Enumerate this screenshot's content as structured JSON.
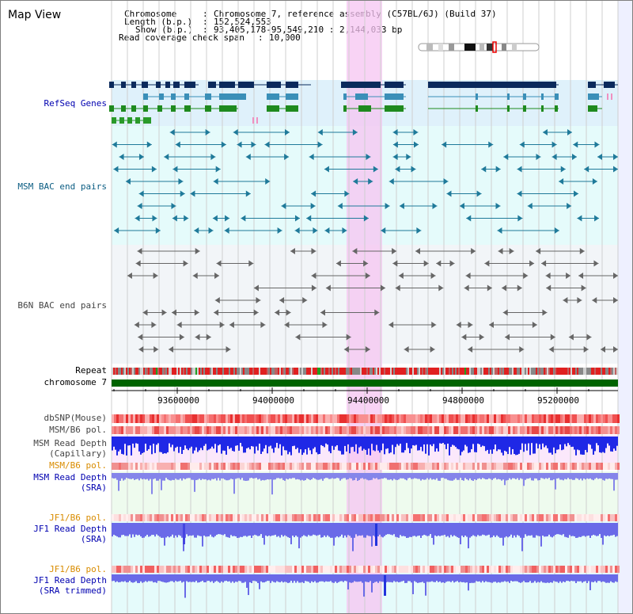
{
  "title": "Map View",
  "info": {
    "chromosome_label": "Chromosome",
    "chromosome_value": "Chromosome 7, reference assembly (C57BL/6J) (Build 37)",
    "length_label": "Length (b.p.)",
    "length_value": "152,524,553",
    "show_label": "Show (b.p.)",
    "show_value": "93,405,178-95,549,210 : 2,144,033 bp",
    "coverage_label": "Read coverage check span",
    "coverage_value": "10,000"
  },
  "tracks": {
    "refseq": "RefSeq Genes",
    "msm_bac": "MSM BAC end pairs",
    "b6n_bac": "B6N BAC end pairs",
    "repeat": "Repeat",
    "chromosome": "chromosome 7",
    "dbsnp": "dbSNP(Mouse)",
    "msm_b6_pol_1": "MSM/B6 pol.",
    "msm_depth_cap_1": "MSM Read Depth",
    "msm_depth_cap_2": "(Capillary)",
    "msm_b6_pol_2": "MSM/B6 pol.",
    "msm_depth_sra_1": "MSM Read Depth",
    "msm_depth_sra_2": "(SRA)",
    "jf1_pol_1": "JF1/B6 pol.",
    "jf1_depth_1": "JF1 Read Depth",
    "jf1_depth_2": "(SRA)",
    "jf1_pol_2": "JF1/B6 pol.",
    "jf1_trim_1": "JF1 Read Depth",
    "jf1_trim_2": "(SRA trimmed)"
  },
  "axis": {
    "ticks": [
      "93600000",
      "94000000",
      "94400000",
      "94800000",
      "95200000"
    ]
  },
  "colors": {
    "highlight": "#f7d4f5",
    "refseq_bg": "#dff1fb",
    "msm_bg": "#e5fbfb",
    "b6n_bg": "#f2f5f8",
    "chromosome": "#006400",
    "depth_blue": "#1f28e6",
    "depth_light": "#7d7de8"
  }
}
